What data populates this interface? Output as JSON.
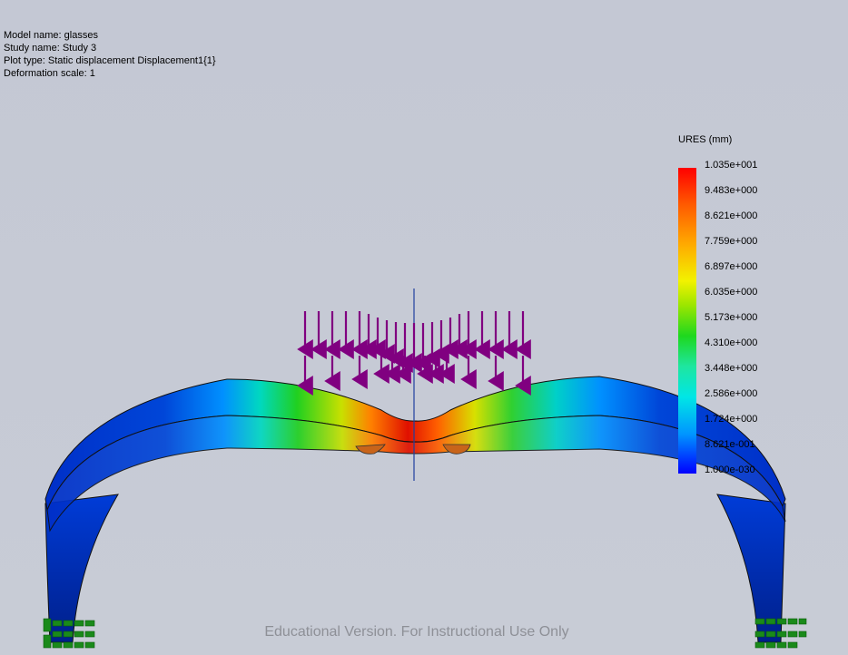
{
  "plot_info": {
    "model_name": "Model name: glasses",
    "study_name": "Study name: Study 3",
    "plot_type": "Plot type: Static displacement Displacement1{1}",
    "deformation_scale": "Deformation scale: 1"
  },
  "legend": {
    "title": "URES (mm)",
    "labels": [
      "1.035e+001",
      "9.483e+000",
      "8.621e+000",
      "7.759e+000",
      "6.897e+000",
      "6.035e+000",
      "5.173e+000",
      "4.310e+000",
      "3.448e+000",
      "2.586e+000",
      "1.724e+000",
      "8.621e-001",
      "1.000e-030"
    ]
  },
  "watermark": "Educational Version. For Instructional Use Only",
  "colors": {
    "load_arrows": "#800080",
    "fixtures": "#1a8a1a",
    "axis_line": "#1f3f9f"
  }
}
